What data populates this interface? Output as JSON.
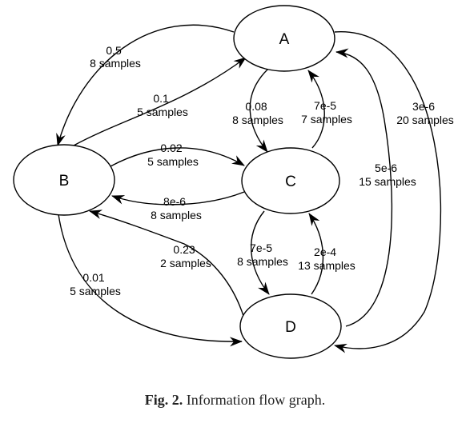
{
  "diagram": {
    "nodes": [
      {
        "id": "A",
        "label": "A"
      },
      {
        "id": "B",
        "label": "B"
      },
      {
        "id": "C",
        "label": "C"
      },
      {
        "id": "D",
        "label": "D"
      }
    ],
    "edges": [
      {
        "id": "A-B",
        "from": "A",
        "to": "B",
        "value": "0.5",
        "samples": "8 samples"
      },
      {
        "id": "B-A",
        "from": "B",
        "to": "A",
        "value": "0.1",
        "samples": "5 samples"
      },
      {
        "id": "A-C",
        "from": "A",
        "to": "C",
        "value": "0.08",
        "samples": "8 samples"
      },
      {
        "id": "C-A",
        "from": "C",
        "to": "A",
        "value": "7e-5",
        "samples": "7 samples"
      },
      {
        "id": "A-D",
        "from": "A",
        "to": "D",
        "value": "3e-6",
        "samples": "20 samples"
      },
      {
        "id": "D-A",
        "from": "D",
        "to": "A",
        "value": "5e-6",
        "samples": "15 samples"
      },
      {
        "id": "B-C",
        "from": "B",
        "to": "C",
        "value": "0.02",
        "samples": "5 samples"
      },
      {
        "id": "C-B",
        "from": "C",
        "to": "B",
        "value": "8e-6",
        "samples": "8 samples"
      },
      {
        "id": "D-B",
        "from": "D",
        "to": "B",
        "value": "0.23",
        "samples": "2 samples"
      },
      {
        "id": "B-D",
        "from": "B",
        "to": "D",
        "value": "0.01",
        "samples": "5 samples"
      },
      {
        "id": "C-D",
        "from": "C",
        "to": "D",
        "value": "7e-5",
        "samples": "8 samples"
      },
      {
        "id": "D-C",
        "from": "D",
        "to": "C",
        "value": "2e-4",
        "samples": "13 samples"
      }
    ]
  },
  "caption": {
    "prefix": "Fig. 2.",
    "text": "Information flow graph."
  }
}
